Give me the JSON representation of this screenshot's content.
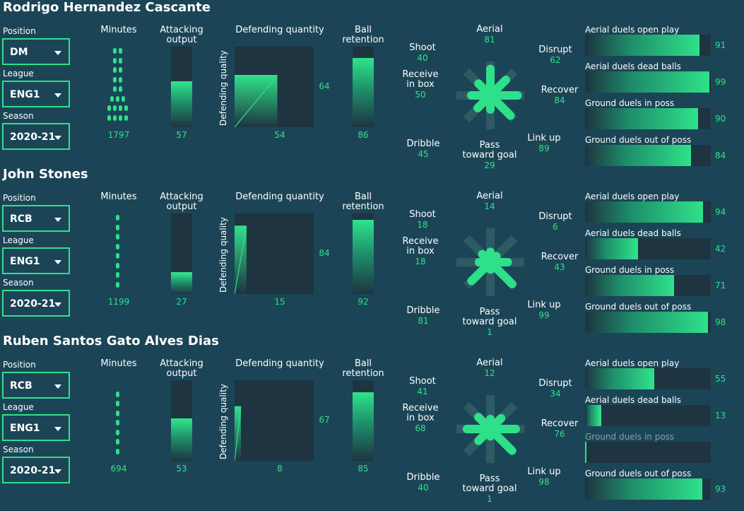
{
  "colors": {
    "background": "#1b4556",
    "accent": "#2fe08a",
    "panel": "#1e3441"
  },
  "labels": {
    "position": "Position",
    "league": "League",
    "season": "Season",
    "minutes": "Minutes",
    "attacking": "Attacking output",
    "attacking_l1": "Attacking",
    "attacking_l2": "output",
    "defending_quantity": "Defending quantity",
    "defending_quality": "Defending quality",
    "ball_retention_l1": "Ball",
    "ball_retention_l2": "retention",
    "aerial": "Aerial",
    "shoot": "Shoot",
    "disrupt": "Disrupt",
    "receive_l1": "Receive",
    "receive_l2": "in box",
    "recover": "Recover",
    "dribble": "Dribble",
    "pass_l1": "Pass",
    "pass_l2": "toward goal",
    "link_up": "Link up",
    "duel_aerial_open": "Aerial duels open play",
    "duel_aerial_dead": "Aerial duels dead balls",
    "duel_ground_in": "Ground duels in poss",
    "duel_ground_out": "Ground duels out of poss"
  },
  "players": [
    {
      "name": "Rodrigo Hernandez Cascante",
      "position": "DM",
      "league": "ENG1",
      "season": "2020-21",
      "minutes": "1797",
      "minute_dots": [
        8,
        8,
        8,
        8,
        8,
        9,
        10,
        10
      ],
      "attacking_output": "57",
      "defending_quantity": "54",
      "defending_quality": "64",
      "ball_retention": "86",
      "radar": {
        "aerial": "81",
        "shoot": "40",
        "disrupt": "62",
        "receive": "50",
        "recover": "84",
        "dribble": "45",
        "pass": "29",
        "link_up": "89"
      },
      "duels": {
        "aerial_open": "91",
        "aerial_dead": "99",
        "ground_in": "90",
        "ground_out": "84"
      },
      "duel_ground_in_dim": false
    },
    {
      "name": "John Stones",
      "position": "RCB",
      "league": "ENG1",
      "season": "2020-21",
      "minutes": "1199",
      "minute_dots": [
        1,
        1,
        1,
        2,
        2,
        2,
        2,
        2
      ],
      "attacking_output": "27",
      "defending_quantity": "15",
      "defending_quality": "84",
      "ball_retention": "92",
      "radar": {
        "aerial": "14",
        "shoot": "18",
        "disrupt": "6",
        "receive": "18",
        "recover": "43",
        "dribble": "81",
        "pass": "1",
        "link_up": "99"
      },
      "duels": {
        "aerial_open": "94",
        "aerial_dead": "42",
        "ground_in": "71",
        "ground_out": "98"
      },
      "duel_ground_in_dim": false
    },
    {
      "name": "Ruben Santos Gato Alves Dias",
      "position": "RCB",
      "league": "ENG1",
      "season": "2020-21",
      "minutes": "694",
      "minute_dots": [
        1,
        1,
        1,
        1,
        1,
        1,
        1
      ],
      "attacking_output": "53",
      "defending_quantity": "8",
      "defending_quality": "67",
      "ball_retention": "85",
      "radar": {
        "aerial": "12",
        "shoot": "41",
        "disrupt": "34",
        "receive": "68",
        "recover": "76",
        "dribble": "40",
        "pass": "1",
        "link_up": "98"
      },
      "duels": {
        "aerial_open": "55",
        "aerial_dead": "13",
        "ground_in": "",
        "ground_out": "93"
      },
      "duel_ground_in_dim": true
    }
  ]
}
